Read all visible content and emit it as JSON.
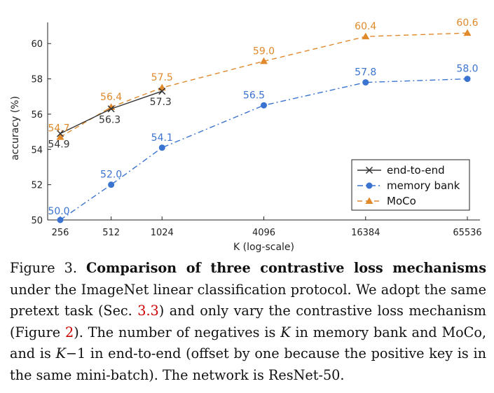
{
  "chart_data": {
    "type": "line",
    "x_scale": "log2",
    "x": [
      256,
      512,
      1024,
      4096,
      16384,
      65536
    ],
    "x_tick_labels": [
      "256",
      "512",
      "1024",
      "4096",
      "16384",
      "65536"
    ],
    "xlabel": "K (log-scale)",
    "ylabel": "accuracy (%)",
    "ylim": [
      50,
      61.2
    ],
    "y_ticks": [
      50,
      52,
      54,
      56,
      58,
      60
    ],
    "legend_position": "bottom-right",
    "series": [
      {
        "name": "end-to-end",
        "color": "#333333",
        "marker": "x",
        "line_style": "solid",
        "x": [
          256,
          512,
          1024
        ],
        "values": [
          54.9,
          56.3,
          57.3
        ],
        "labels": [
          "54.9",
          "56.3",
          "57.3"
        ]
      },
      {
        "name": "memory bank",
        "color": "#3b73d1",
        "marker": "circle",
        "line_style": "dash-dot",
        "x": [
          256,
          512,
          1024,
          4096,
          16384,
          65536
        ],
        "values": [
          50.0,
          52.0,
          54.1,
          56.5,
          57.8,
          58.0
        ],
        "labels": [
          "50.0",
          "52.0",
          "54.1",
          "56.5",
          "57.8",
          "58.0"
        ]
      },
      {
        "name": "MoCo",
        "color": "#e08a2c",
        "marker": "triangle",
        "line_style": "dashed",
        "x": [
          256,
          512,
          1024,
          4096,
          16384,
          65536
        ],
        "values": [
          54.7,
          56.4,
          57.5,
          59.0,
          60.4,
          60.6
        ],
        "labels": [
          "54.7",
          "56.4",
          "57.5",
          "59.0",
          "60.4",
          "60.6"
        ]
      }
    ]
  },
  "caption": {
    "label": "Figure 3.",
    "title": "Comparison of three contrastive loss mechanisms",
    "t1": " under the ImageNet linear classification protocol. We adopt the same pretext task (Sec. ",
    "ref_sec": "3.3",
    "t2": ") and only vary the contrastive loss mechanism (Figure ",
    "ref_fig": "2",
    "t3": "). The number of negatives is ",
    "var_k1": "K",
    "t4": " in memory bank and MoCo, and is ",
    "var_k2": "K",
    "t5": "−1 in end-to-end (offset by one because the positive key is in the same mini-batch). The network is ResNet-50."
  }
}
